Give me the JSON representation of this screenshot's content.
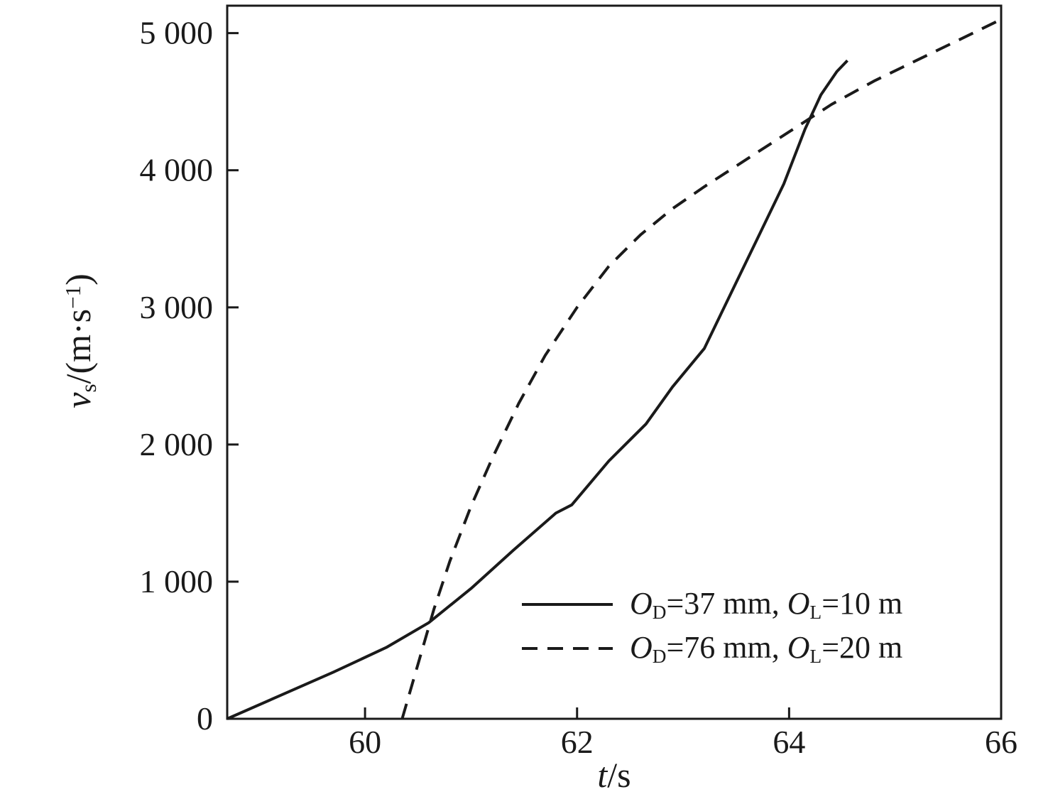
{
  "chart_data": {
    "type": "line",
    "title": "",
    "xlabel": "t/s",
    "ylabel": "vₛ/(m·s⁻¹)",
    "xlim": [
      58.7,
      66
    ],
    "ylim": [
      0,
      5200
    ],
    "xticks": [
      60,
      62,
      64,
      66
    ],
    "yticks": [
      0,
      1000,
      2000,
      3000,
      4000,
      5000
    ],
    "ytick_labels": [
      "0",
      "1 000",
      "2 000",
      "3 000",
      "4 000",
      "5 000"
    ],
    "grid": false,
    "frame": true,
    "line_color": "#1a1a1a",
    "legend_position": "inside-bottom-right",
    "series": [
      {
        "name": "O_D=37 mm, O_L=10 m",
        "style": "solid",
        "x": [
          58.7,
          59.2,
          59.7,
          60.2,
          60.6,
          61.0,
          61.4,
          61.8,
          61.95,
          62.3,
          62.65,
          62.9,
          63.2,
          63.45,
          63.7,
          63.95,
          64.15,
          64.3,
          64.45,
          64.55
        ],
        "y": [
          0,
          170,
          340,
          520,
          700,
          950,
          1230,
          1500,
          1560,
          1880,
          2150,
          2420,
          2700,
          3100,
          3500,
          3900,
          4300,
          4550,
          4720,
          4800
        ]
      },
      {
        "name": "O_D=76 mm, O_L=20 m",
        "style": "dashed",
        "x": [
          60.35,
          60.5,
          60.65,
          60.8,
          61.0,
          61.2,
          61.45,
          61.7,
          62.0,
          62.3,
          62.6,
          62.9,
          63.2,
          63.6,
          64.0,
          64.4,
          64.8,
          65.2,
          65.6,
          66.0
        ],
        "y": [
          0,
          400,
          800,
          1150,
          1550,
          1900,
          2300,
          2650,
          3000,
          3300,
          3530,
          3720,
          3880,
          4080,
          4280,
          4480,
          4650,
          4800,
          4950,
          5100
        ]
      }
    ]
  },
  "labels": {
    "xlabel": {
      "var": "t",
      "rest": "/s"
    },
    "ylabel": {
      "var": "v",
      "sub": "s",
      "mid": "/(m·s",
      "sup": "−1",
      "end": ")"
    }
  },
  "legend": {
    "items": [
      {
        "O1": "O",
        "sub1": "D",
        "eq1": "=37 mm, ",
        "O2": "O",
        "sub2": "L",
        "eq2": "=10 m"
      },
      {
        "O1": "O",
        "sub1": "D",
        "eq1": "=76 mm, ",
        "O2": "O",
        "sub2": "L",
        "eq2": "=20 m"
      }
    ]
  }
}
